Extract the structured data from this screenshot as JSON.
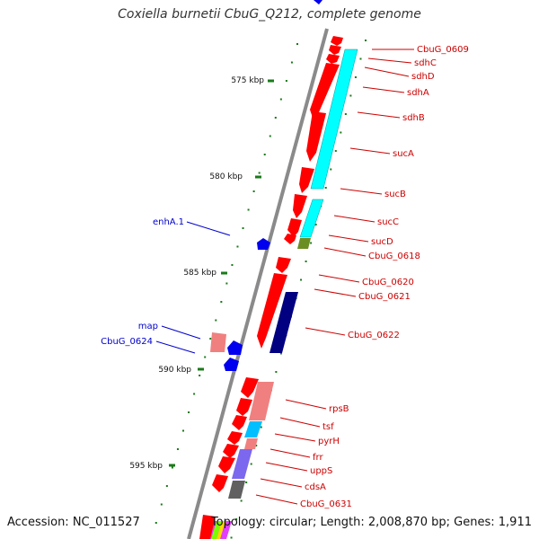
{
  "title": "Coxiella burnetii CbuG_Q212, complete genome",
  "footer": {
    "accession": "Accession: NC_011527",
    "summary": "Topology: circular; Length: 2,008,870 bp; Genes: 1,911"
  },
  "colors": {
    "backbone": "#8a8a8a",
    "tick": "#1a7a1a",
    "cds": "#ff0000",
    "label_red": "#cc0000",
    "label_blue": "#0000cc",
    "cyan": "#00ffff",
    "navy": "#000080",
    "olive": "#6b8e23",
    "pink": "#f08080",
    "purple": "#7b68ee",
    "gray": "#606060"
  },
  "scale_labels": [
    "575 kbp",
    "580 kbp",
    "585 kbp",
    "590 kbp",
    "595 kbp"
  ],
  "genes_right": [
    "CbuG_0609",
    "sdhC",
    "sdhD",
    "sdhA",
    "sdhB",
    "sucA",
    "sucB",
    "sucC",
    "sucD",
    "CbuG_0618",
    "CbuG_0620",
    "CbuG_0621",
    "CbuG_0622",
    "rpsB",
    "tsf",
    "pyrH",
    "frr",
    "uppS",
    "cdsA",
    "CbuG_0631"
  ],
  "genes_left": [
    "enhA.1",
    "map",
    "CbuG_0624"
  ]
}
